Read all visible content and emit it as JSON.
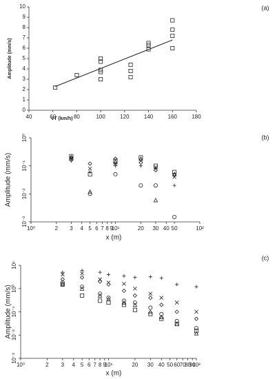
{
  "chart_data": [
    {
      "type": "scatter",
      "panel_label": "(a)",
      "y_label": "Amplitude (mm/s)",
      "x_label": "vT (km/h)",
      "xscale": "linear",
      "yscale": "linear",
      "xlim": [
        40,
        180
      ],
      "xticks": [
        40,
        60,
        80,
        100,
        120,
        140,
        160,
        180
      ],
      "ylim": [
        0,
        10
      ],
      "yticks": [
        0,
        1,
        2,
        3,
        4,
        5,
        6,
        7,
        8,
        9,
        10
      ],
      "series": [
        {
          "marker": "square",
          "x": [
            62,
            80,
            100,
            100,
            100,
            100,
            100,
            125,
            125,
            125,
            140,
            140,
            140,
            160,
            160,
            160,
            160
          ],
          "values": [
            2.2,
            3.4,
            3.0,
            3.7,
            3.9,
            4.7,
            5.0,
            3.2,
            3.8,
            4.4,
            5.9,
            6.3,
            6.5,
            6.0,
            7.2,
            7.8,
            8.7
          ]
        },
        {
          "marker": "line",
          "x": [
            62,
            160
          ],
          "values": [
            2.3,
            6.8
          ]
        }
      ]
    },
    {
      "type": "scatter",
      "panel_label": "(b)",
      "y_label": "Amplitude (mm/s)",
      "x_label": "x (m)",
      "xscale": "log",
      "yscale": "log",
      "xlim": [
        1,
        100
      ],
      "xticks": [
        {
          "value": 1,
          "label": "10⁰"
        },
        2,
        3,
        4,
        5,
        6,
        7,
        8,
        9,
        {
          "value": 10,
          "label": "10¹"
        },
        20,
        30,
        40,
        50,
        {
          "value": 100,
          "label": "10²"
        }
      ],
      "ylim": [
        0.001,
        1
      ],
      "yticks": [
        {
          "value": 0.001,
          "label": "10⁻³"
        },
        {
          "value": 0.01,
          "label": "10⁻²"
        },
        {
          "value": 0.1,
          "label": "10⁻¹"
        },
        {
          "value": 1,
          "label": "10⁰"
        }
      ],
      "x": [
        3,
        5,
        10,
        20,
        30,
        50
      ],
      "series": [
        {
          "marker": "square",
          "values": [
            0.22,
            0.05,
            0.15,
            0.2,
            0.1,
            0.06
          ]
        },
        {
          "marker": "diamond",
          "values": [
            0.2,
            0.12,
            0.18,
            0.13,
            0.07,
            0.05
          ]
        },
        {
          "marker": "x",
          "values": [
            0.18,
            0.08,
            0.12,
            0.15,
            0.09,
            0.04
          ]
        },
        {
          "marker": "plus",
          "values": [
            0.15,
            0.06,
            0.1,
            0.1,
            0.08,
            0.02
          ]
        },
        {
          "marker": "triangle",
          "values": [
            0.2,
            0.012,
            0.14,
            0.18,
            0.006,
            0.05
          ]
        },
        {
          "marker": "circle",
          "values": [
            0.17,
            0.01,
            0.05,
            0.02,
            0.02,
            0.0015
          ]
        }
      ]
    },
    {
      "type": "scatter",
      "panel_label": "(c)",
      "y_label": "Amplitude (mm/s)",
      "x_label": "x (m)",
      "xscale": "log",
      "yscale": "log",
      "xlim": [
        1,
        100
      ],
      "xticks": [
        {
          "value": 1,
          "label": "10⁰"
        },
        2,
        3,
        4,
        5,
        6,
        7,
        8,
        9,
        {
          "value": 10,
          "label": "10¹"
        },
        20,
        30,
        40,
        50,
        60,
        70,
        80,
        90,
        {
          "value": 100,
          "label": "10²"
        }
      ],
      "ylim": [
        0.001,
        10
      ],
      "yticks": [
        {
          "value": 0.001,
          "label": "10⁻³"
        },
        {
          "value": 0.01,
          "label": "10⁻²"
        },
        {
          "value": 0.1,
          "label": "10⁻¹"
        },
        {
          "value": 1,
          "label": "10⁰"
        },
        {
          "value": 10,
          "label": "10¹"
        }
      ],
      "x": [
        3,
        5,
        8,
        10,
        15,
        20,
        30,
        40,
        60,
        100
      ],
      "series": [
        {
          "marker": "plus",
          "values": [
            5,
            6,
            5,
            4,
            3.5,
            3,
            3.2,
            2.8,
            1.5,
            1.2
          ]
        },
        {
          "marker": "x",
          "values": [
            4,
            4.5,
            2.5,
            1.8,
            1.6,
            1.0,
            0.6,
            0.4,
            0.25,
            0.1
          ]
        },
        {
          "marker": "diamond",
          "values": [
            2.5,
            3,
            2,
            1.5,
            0.8,
            0.5,
            0.4,
            0.2,
            0.1,
            0.05
          ]
        },
        {
          "marker": "circle",
          "values": [
            1.8,
            1.2,
            0.6,
            0.4,
            0.3,
            0.25,
            0.15,
            0.08,
            0.04,
            0.02
          ]
        },
        {
          "marker": "square",
          "values": [
            1.5,
            0.5,
            0.3,
            0.25,
            0.2,
            0.12,
            0.08,
            0.05,
            0.03,
            0.015
          ]
        },
        {
          "marker": "triangle",
          "values": [
            1.6,
            1,
            0.5,
            0.35,
            0.25,
            0.2,
            0.1,
            0.06,
            0.03,
            0.012
          ]
        }
      ]
    }
  ]
}
